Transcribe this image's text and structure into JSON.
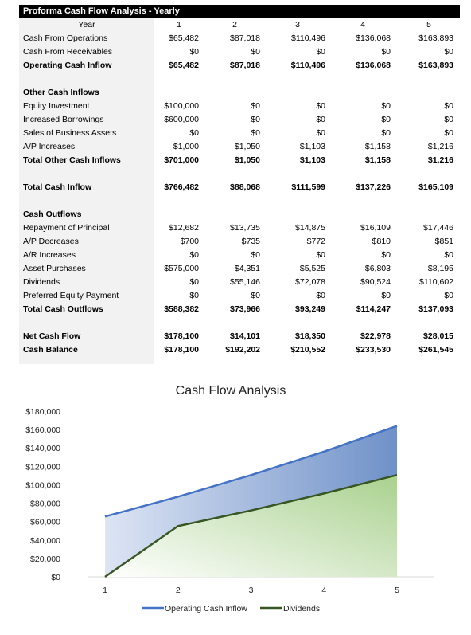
{
  "sheet": {
    "title": "Proforma Cash Flow Analysis - Yearly",
    "rows": [
      {
        "label": "Year",
        "values": [
          "1",
          "2",
          "3",
          "4",
          "5"
        ],
        "style": "header"
      },
      {
        "label": "Cash From Operations",
        "values": [
          "$65,482",
          "$87,018",
          "$110,496",
          "$136,068",
          "$163,893"
        ],
        "style": ""
      },
      {
        "label": "Cash From Receivables",
        "values": [
          "$0",
          "$0",
          "$0",
          "$0",
          "$0"
        ],
        "style": ""
      },
      {
        "label": "Operating Cash Inflow",
        "values": [
          "$65,482",
          "$87,018",
          "$110,496",
          "$136,068",
          "$163,893"
        ],
        "style": "bold"
      },
      {
        "label": "",
        "values": [
          "",
          "",
          "",
          "",
          ""
        ],
        "style": "blank"
      },
      {
        "label": "Other Cash Inflows",
        "values": [
          "",
          "",
          "",
          "",
          ""
        ],
        "style": "bold"
      },
      {
        "label": "Equity Investment",
        "values": [
          "$100,000",
          "$0",
          "$0",
          "$0",
          "$0"
        ],
        "style": ""
      },
      {
        "label": "Increased Borrowings",
        "values": [
          "$600,000",
          "$0",
          "$0",
          "$0",
          "$0"
        ],
        "style": ""
      },
      {
        "label": "Sales of Business Assets",
        "values": [
          "$0",
          "$0",
          "$0",
          "$0",
          "$0"
        ],
        "style": ""
      },
      {
        "label": "A/P Increases",
        "values": [
          "$1,000",
          "$1,050",
          "$1,103",
          "$1,158",
          "$1,216"
        ],
        "style": ""
      },
      {
        "label": "Total Other Cash Inflows",
        "values": [
          "$701,000",
          "$1,050",
          "$1,103",
          "$1,158",
          "$1,216"
        ],
        "style": "bold"
      },
      {
        "label": "",
        "values": [
          "",
          "",
          "",
          "",
          ""
        ],
        "style": "blank"
      },
      {
        "label": "Total Cash Inflow",
        "values": [
          "$766,482",
          "$88,068",
          "$111,599",
          "$137,226",
          "$165,109"
        ],
        "style": "bold"
      },
      {
        "label": "",
        "values": [
          "",
          "",
          "",
          "",
          ""
        ],
        "style": "blank"
      },
      {
        "label": "Cash Outflows",
        "values": [
          "",
          "",
          "",
          "",
          ""
        ],
        "style": "bold"
      },
      {
        "label": "Repayment of Principal",
        "values": [
          "$12,682",
          "$13,735",
          "$14,875",
          "$16,109",
          "$17,446"
        ],
        "style": ""
      },
      {
        "label": "A/P Decreases",
        "values": [
          "$700",
          "$735",
          "$772",
          "$810",
          "$851"
        ],
        "style": ""
      },
      {
        "label": "A/R Increases",
        "values": [
          "$0",
          "$0",
          "$0",
          "$0",
          "$0"
        ],
        "style": ""
      },
      {
        "label": "Asset Purchases",
        "values": [
          "$575,000",
          "$4,351",
          "$5,525",
          "$6,803",
          "$8,195"
        ],
        "style": ""
      },
      {
        "label": "Dividends",
        "values": [
          "$0",
          "$55,146",
          "$72,078",
          "$90,524",
          "$110,602"
        ],
        "style": ""
      },
      {
        "label": "Preferred Equity Payment",
        "values": [
          "$0",
          "$0",
          "$0",
          "$0",
          "$0"
        ],
        "style": ""
      },
      {
        "label": "Total Cash Outflows",
        "values": [
          "$588,382",
          "$73,966",
          "$93,249",
          "$114,247",
          "$137,093"
        ],
        "style": "bold"
      },
      {
        "label": "",
        "values": [
          "",
          "",
          "",
          "",
          ""
        ],
        "style": "blank"
      },
      {
        "label": "Net Cash Flow",
        "values": [
          "$178,100",
          "$14,101",
          "$18,350",
          "$22,978",
          "$28,015"
        ],
        "style": "bold"
      },
      {
        "label": "Cash Balance",
        "values": [
          "$178,100",
          "$192,202",
          "$210,552",
          "$233,530",
          "$261,545"
        ],
        "style": "bold"
      }
    ]
  },
  "chart_data": {
    "type": "area",
    "title": "Cash Flow Analysis",
    "x": [
      1,
      2,
      3,
      4,
      5
    ],
    "series": [
      {
        "name": "Operating Cash Inflow",
        "values": [
          65482,
          87018,
          110496,
          136068,
          163893
        ],
        "color": "#4472c4"
      },
      {
        "name": "Dividends",
        "values": [
          0,
          55146,
          72078,
          90524,
          110602
        ],
        "color": "#375623"
      }
    ],
    "ylim": [
      0,
      180000
    ],
    "yticks": [
      "$0",
      "$20,000",
      "$40,000",
      "$60,000",
      "$80,000",
      "$100,000",
      "$120,000",
      "$140,000",
      "$160,000",
      "$180,000"
    ],
    "xticks": [
      "1",
      "2",
      "3",
      "4",
      "5"
    ],
    "legend": "bottom",
    "grid": false
  }
}
